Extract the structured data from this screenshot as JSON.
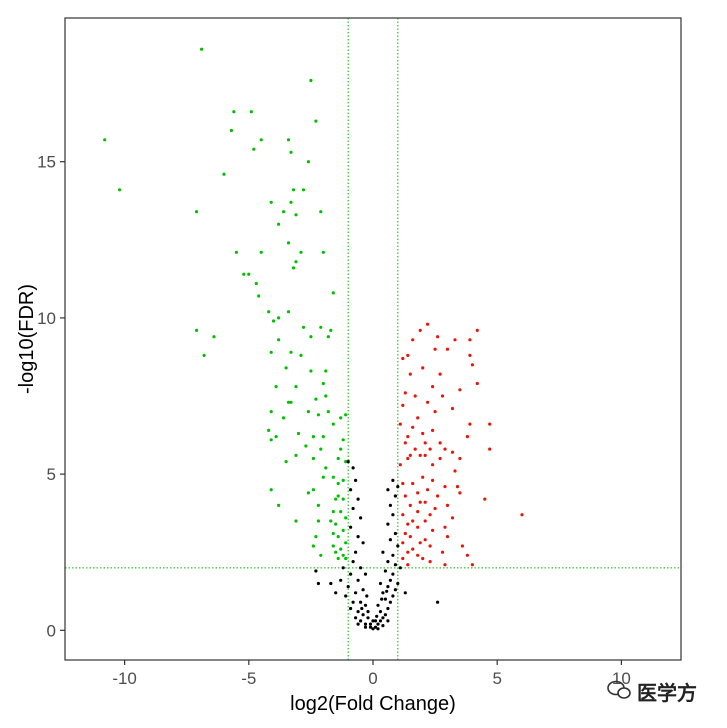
{
  "chart_data": {
    "type": "scatter",
    "title": "",
    "xlabel": "log2(Fold Change)",
    "ylabel": "-log10(FDR)",
    "xlim": [
      -12.4,
      12.4
    ],
    "ylim": [
      -0.95,
      19.6
    ],
    "xticks": [
      -10,
      -5,
      0,
      5,
      10
    ],
    "yticks": [
      0,
      5,
      10,
      15
    ],
    "grid": false,
    "legend": "none",
    "thresholds": {
      "log2fc": [
        -1,
        1
      ],
      "neg_log10_fdr": 2,
      "line_color": "#00b400",
      "line_style": "dotted"
    },
    "colors": {
      "down": "#00c000",
      "up": "#e8150a",
      "not_significant": "#000000"
    },
    "series": [
      {
        "group": "down",
        "points": [
          [
            -6.9,
            18.6
          ],
          [
            -2.5,
            17.6
          ],
          [
            -5.6,
            16.6
          ],
          [
            -4.9,
            16.6
          ],
          [
            -2.3,
            16.3
          ],
          [
            -10.8,
            15.7
          ],
          [
            -5.7,
            16.0
          ],
          [
            -4.5,
            15.7
          ],
          [
            -4.8,
            15.4
          ],
          [
            -3.4,
            15.7
          ],
          [
            -3.3,
            15.3
          ],
          [
            -2.6,
            15.0
          ],
          [
            -10.2,
            14.1
          ],
          [
            -6.0,
            14.6
          ],
          [
            -3.2,
            14.1
          ],
          [
            -2.8,
            14.1
          ],
          [
            -4.1,
            13.7
          ],
          [
            -3.6,
            13.4
          ],
          [
            -3.3,
            13.7
          ],
          [
            -3.1,
            13.3
          ],
          [
            -7.1,
            13.4
          ],
          [
            -2.1,
            13.4
          ],
          [
            -3.8,
            13.0
          ],
          [
            -5.5,
            12.1
          ],
          [
            -4.5,
            12.1
          ],
          [
            -3.4,
            12.4
          ],
          [
            -2.9,
            12.1
          ],
          [
            -3.1,
            11.8
          ],
          [
            -3.2,
            11.6
          ],
          [
            -2.0,
            12.1
          ],
          [
            -5.2,
            11.4
          ],
          [
            -5.0,
            11.4
          ],
          [
            -4.7,
            11.1
          ],
          [
            -4.6,
            10.7
          ],
          [
            -4.2,
            10.2
          ],
          [
            -3.4,
            10.2
          ],
          [
            -1.6,
            10.8
          ],
          [
            -4.0,
            9.9
          ],
          [
            -3.8,
            10.0
          ],
          [
            -2.8,
            9.7
          ],
          [
            -2.1,
            9.7
          ],
          [
            -1.7,
            9.6
          ],
          [
            -7.1,
            9.6
          ],
          [
            -6.4,
            9.4
          ],
          [
            -3.8,
            9.3
          ],
          [
            -2.5,
            9.4
          ],
          [
            -1.8,
            9.4
          ],
          [
            -4.1,
            8.9
          ],
          [
            -3.3,
            8.9
          ],
          [
            -2.9,
            8.8
          ],
          [
            -6.8,
            8.8
          ],
          [
            -3.5,
            8.4
          ],
          [
            -2.5,
            8.3
          ],
          [
            -1.9,
            8.3
          ],
          [
            -2.0,
            7.9
          ],
          [
            -3.9,
            7.8
          ],
          [
            -3.1,
            7.8
          ],
          [
            -2.3,
            7.4
          ],
          [
            -3.4,
            7.3
          ],
          [
            -3.3,
            7.3
          ],
          [
            -1.9,
            7.5
          ],
          [
            -4.1,
            7.0
          ],
          [
            -2.6,
            7.0
          ],
          [
            -2.2,
            6.9
          ],
          [
            -3.6,
            6.8
          ],
          [
            -1.8,
            7.0
          ],
          [
            -4.2,
            6.4
          ],
          [
            -3.9,
            6.2
          ],
          [
            -4.1,
            6.1
          ],
          [
            -3.0,
            6.3
          ],
          [
            -2.4,
            6.2
          ],
          [
            -2.0,
            6.2
          ],
          [
            -1.6,
            6.6
          ],
          [
            -1.3,
            6.8
          ],
          [
            -1.1,
            6.9
          ],
          [
            -2.7,
            5.9
          ],
          [
            -1.2,
            6.1
          ],
          [
            -1.3,
            5.8
          ],
          [
            -2.1,
            5.8
          ],
          [
            -3.1,
            5.6
          ],
          [
            -3.5,
            5.4
          ],
          [
            -2.4,
            5.5
          ],
          [
            -1.4,
            5.5
          ],
          [
            -1.9,
            5.2
          ],
          [
            -2.0,
            4.9
          ],
          [
            -1.6,
            4.9
          ],
          [
            -1.1,
            5.4
          ],
          [
            -1.2,
            4.8
          ],
          [
            -1.4,
            4.7
          ],
          [
            -2.4,
            4.5
          ],
          [
            -2.6,
            4.4
          ],
          [
            -4.1,
            4.5
          ],
          [
            -1.4,
            4.3
          ],
          [
            -1.5,
            4.2
          ],
          [
            -1.2,
            4.2
          ],
          [
            -2.2,
            4.0
          ],
          [
            -3.8,
            4.0
          ],
          [
            -1.6,
            3.8
          ],
          [
            -1.3,
            3.8
          ],
          [
            -1.1,
            3.6
          ],
          [
            -1.7,
            3.5
          ],
          [
            -1.5,
            3.4
          ],
          [
            -2.2,
            3.5
          ],
          [
            -3.1,
            3.5
          ],
          [
            -1.2,
            3.2
          ],
          [
            -1.6,
            3.1
          ],
          [
            -1.4,
            3.0
          ],
          [
            -2.3,
            3.0
          ],
          [
            -1.1,
            2.8
          ],
          [
            -2.4,
            2.7
          ],
          [
            -1.6,
            2.7
          ],
          [
            -1.3,
            2.6
          ],
          [
            -1.5,
            2.5
          ],
          [
            -1.2,
            2.4
          ],
          [
            -2.1,
            2.4
          ],
          [
            -1.4,
            2.3
          ],
          [
            -1.1,
            2.3
          ]
        ]
      },
      {
        "group": "up",
        "points": [
          [
            2.2,
            9.8
          ],
          [
            1.9,
            9.6
          ],
          [
            4.2,
            9.6
          ],
          [
            3.3,
            9.3
          ],
          [
            2.6,
            9.4
          ],
          [
            1.6,
            9.3
          ],
          [
            3.9,
            9.3
          ],
          [
            2.5,
            9.0
          ],
          [
            3.0,
            9.0
          ],
          [
            3.9,
            8.8
          ],
          [
            1.4,
            8.8
          ],
          [
            1.2,
            8.7
          ],
          [
            4.0,
            8.5
          ],
          [
            2.0,
            8.4
          ],
          [
            1.5,
            8.2
          ],
          [
            2.7,
            8.2
          ],
          [
            4.2,
            7.9
          ],
          [
            2.4,
            7.8
          ],
          [
            3.5,
            7.7
          ],
          [
            1.3,
            7.6
          ],
          [
            1.7,
            7.5
          ],
          [
            2.8,
            7.5
          ],
          [
            2.2,
            7.3
          ],
          [
            1.2,
            7.2
          ],
          [
            3.2,
            7.1
          ],
          [
            2.5,
            7.0
          ],
          [
            1.8,
            6.8
          ],
          [
            4.7,
            6.6
          ],
          [
            1.1,
            6.6
          ],
          [
            3.9,
            6.6
          ],
          [
            1.6,
            6.5
          ],
          [
            2.4,
            6.4
          ],
          [
            2.0,
            6.3
          ],
          [
            3.8,
            6.2
          ],
          [
            1.4,
            6.2
          ],
          [
            2.1,
            6.0
          ],
          [
            1.3,
            6.0
          ],
          [
            2.7,
            6.0
          ],
          [
            2.9,
            5.8
          ],
          [
            4.7,
            5.8
          ],
          [
            1.7,
            5.8
          ],
          [
            2.3,
            5.8
          ],
          [
            3.2,
            5.7
          ],
          [
            1.5,
            5.6
          ],
          [
            2.1,
            5.6
          ],
          [
            1.9,
            5.6
          ],
          [
            2.7,
            5.5
          ],
          [
            3.5,
            5.5
          ],
          [
            1.4,
            5.5
          ],
          [
            2.4,
            5.3
          ],
          [
            1.1,
            5.3
          ],
          [
            3.3,
            5.1
          ],
          [
            2.0,
            4.9
          ],
          [
            2.4,
            4.8
          ],
          [
            1.6,
            4.7
          ],
          [
            1.2,
            4.7
          ],
          [
            2.9,
            4.6
          ],
          [
            3.4,
            4.6
          ],
          [
            2.2,
            4.5
          ],
          [
            1.8,
            4.4
          ],
          [
            2.6,
            4.3
          ],
          [
            4.5,
            4.2
          ],
          [
            3.5,
            4.4
          ],
          [
            1.3,
            4.3
          ],
          [
            2.1,
            4.1
          ],
          [
            1.9,
            4.1
          ],
          [
            3.0,
            4.0
          ],
          [
            1.5,
            4.0
          ],
          [
            2.5,
            3.9
          ],
          [
            6.0,
            3.7
          ],
          [
            1.8,
            3.8
          ],
          [
            2.3,
            3.7
          ],
          [
            1.2,
            3.7
          ],
          [
            3.2,
            3.6
          ],
          [
            1.6,
            3.5
          ],
          [
            2.1,
            3.5
          ],
          [
            1.4,
            3.4
          ],
          [
            2.9,
            3.3
          ],
          [
            1.8,
            3.3
          ],
          [
            2.4,
            3.2
          ],
          [
            1.3,
            3.1
          ],
          [
            3.0,
            3.0
          ],
          [
            1.5,
            3.0
          ],
          [
            2.1,
            2.9
          ],
          [
            1.9,
            2.8
          ],
          [
            1.2,
            2.8
          ],
          [
            3.6,
            2.7
          ],
          [
            2.3,
            2.7
          ],
          [
            1.6,
            2.6
          ],
          [
            1.4,
            2.5
          ],
          [
            2.8,
            2.5
          ],
          [
            1.8,
            2.4
          ],
          [
            3.8,
            2.4
          ],
          [
            1.2,
            2.3
          ],
          [
            2.3,
            2.2
          ],
          [
            2.0,
            2.3
          ],
          [
            4.0,
            2.1
          ],
          [
            2.9,
            2.1
          ],
          [
            1.4,
            2.1
          ]
        ]
      },
      {
        "group": "not_significant",
        "points": [
          [
            -1.0,
            5.4
          ],
          [
            -0.8,
            5.2
          ],
          [
            -0.7,
            4.8
          ],
          [
            -0.9,
            4.5
          ],
          [
            -0.6,
            4.2
          ],
          [
            -0.8,
            3.9
          ],
          [
            -0.5,
            3.6
          ],
          [
            -0.9,
            3.3
          ],
          [
            -0.6,
            3.0
          ],
          [
            -0.4,
            2.8
          ],
          [
            -0.7,
            2.5
          ],
          [
            -0.8,
            2.2
          ],
          [
            -0.5,
            2.0
          ],
          [
            -0.3,
            1.8
          ],
          [
            -0.9,
            1.8
          ],
          [
            -0.6,
            1.6
          ],
          [
            -1.0,
            1.4
          ],
          [
            -0.4,
            1.3
          ],
          [
            -0.7,
            1.2
          ],
          [
            -1.3,
            1.6
          ],
          [
            -1.7,
            1.5
          ],
          [
            -2.2,
            1.5
          ],
          [
            -2.3,
            1.9
          ],
          [
            -1.5,
            1.2
          ],
          [
            -1.1,
            1.1
          ],
          [
            -0.8,
            0.9
          ],
          [
            -0.5,
            0.9
          ],
          [
            -0.3,
            0.8
          ],
          [
            -0.9,
            0.7
          ],
          [
            -0.6,
            0.6
          ],
          [
            -0.4,
            0.5
          ],
          [
            -0.2,
            0.4
          ],
          [
            -0.7,
            0.4
          ],
          [
            -0.5,
            0.3
          ],
          [
            -0.3,
            0.2
          ],
          [
            -0.1,
            0.1
          ],
          [
            0.0,
            0.05
          ],
          [
            0.1,
            0.1
          ],
          [
            0.2,
            0.2
          ],
          [
            0.3,
            0.3
          ],
          [
            0.1,
            0.3
          ],
          [
            0.4,
            0.4
          ],
          [
            0.5,
            0.5
          ],
          [
            0.3,
            0.6
          ],
          [
            0.6,
            0.7
          ],
          [
            0.2,
            0.8
          ],
          [
            0.7,
            0.9
          ],
          [
            0.5,
            1.0
          ],
          [
            0.8,
            1.1
          ],
          [
            0.4,
            1.2
          ],
          [
            0.9,
            1.3
          ],
          [
            0.6,
            1.4
          ],
          [
            1.0,
            1.5
          ],
          [
            0.7,
            1.6
          ],
          [
            0.3,
            1.5
          ],
          [
            0.8,
            1.8
          ],
          [
            0.5,
            1.9
          ],
          [
            1.1,
            2.0
          ],
          [
            0.9,
            2.1
          ],
          [
            0.6,
            2.2
          ],
          [
            0.8,
            2.4
          ],
          [
            0.4,
            2.5
          ],
          [
            1.0,
            2.7
          ],
          [
            0.7,
            2.9
          ],
          [
            0.9,
            3.1
          ],
          [
            0.6,
            3.4
          ],
          [
            0.8,
            3.7
          ],
          [
            0.7,
            4.0
          ],
          [
            0.9,
            4.3
          ],
          [
            0.6,
            4.5
          ],
          [
            0.8,
            4.8
          ],
          [
            1.0,
            4.6
          ],
          [
            2.6,
            0.9
          ],
          [
            -0.2,
            0.6
          ],
          [
            0.0,
            0.3
          ],
          [
            -0.1,
            0.2
          ],
          [
            0.2,
            0.05
          ],
          [
            -0.3,
            0.1
          ],
          [
            0.4,
            0.15
          ],
          [
            -0.6,
            0.2
          ],
          [
            0.6,
            0.3
          ],
          [
            0.15,
            0.45
          ],
          [
            -0.45,
            0.7
          ],
          [
            0.35,
            1.0
          ],
          [
            -0.25,
            1.1
          ],
          [
            1.3,
            1.2
          ],
          [
            -1.2,
            2.0
          ],
          [
            0.55,
            1.25
          ]
        ]
      }
    ]
  },
  "watermark": {
    "text": "医学方"
  }
}
